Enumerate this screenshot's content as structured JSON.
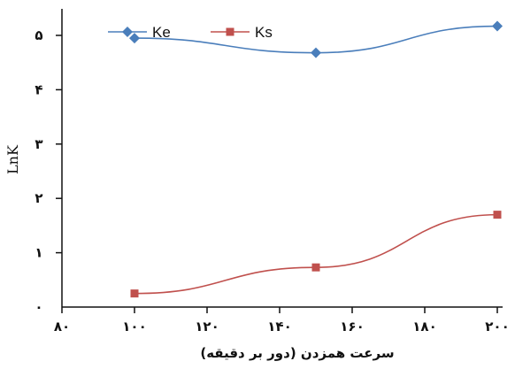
{
  "chart_data": {
    "type": "line",
    "x": [
      100,
      150,
      200
    ],
    "series": [
      {
        "name": "Ke",
        "values": [
          4.95,
          4.68,
          5.17
        ],
        "color": "#4a7ebb",
        "marker": "diamond"
      },
      {
        "name": "Ks",
        "values": [
          0.25,
          0.73,
          1.7
        ],
        "color": "#c0504d",
        "marker": "square"
      }
    ],
    "xlim": [
      80,
      200
    ],
    "ylim": [
      0,
      5.5
    ],
    "xticks": [
      80,
      100,
      120,
      140,
      160,
      180,
      200
    ],
    "xtick_labels": [
      "۸۰",
      "۱۰۰",
      "۱۲۰",
      "۱۴۰",
      "۱۶۰",
      "۱۸۰",
      "۲۰۰"
    ],
    "yticks": [
      0,
      1,
      2,
      3,
      4,
      5
    ],
    "ytick_labels": [
      "۰",
      "۱",
      "۲",
      "۳",
      "۴",
      "۵"
    ],
    "xlabel": "سرعت همزدن (دور بر دقیقه)",
    "ylabel": "LnK",
    "legend": "top-left",
    "grid": false
  }
}
